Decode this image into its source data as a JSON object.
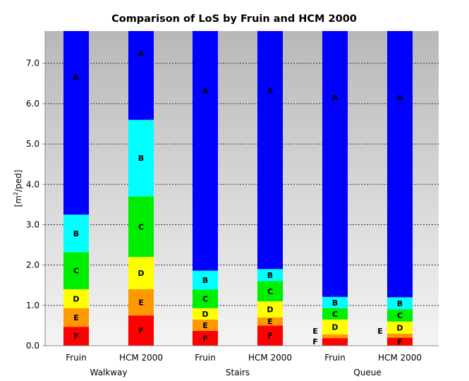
{
  "chart_data": {
    "type": "bar",
    "stacked": true,
    "title": "Comparison of LoS by Fruin and HCM 2000",
    "ylabel_prefix": "[m",
    "ylabel_sup": "2",
    "ylabel_suffix": "/ped]",
    "ylim": [
      0,
      7.8
    ],
    "yticks": [
      "0.0",
      "1.0",
      "2.0",
      "3.0",
      "4.0",
      "5.0",
      "6.0",
      "7.0"
    ],
    "grid": true,
    "legend": "none",
    "groups": [
      "Walkway",
      "Stairs",
      "Queue"
    ],
    "bars": [
      {
        "label": "Fruin",
        "group": "Walkway",
        "segments": [
          {
            "los": "F",
            "from": 0,
            "to": 0.47
          },
          {
            "los": "E",
            "from": 0.47,
            "to": 0.93
          },
          {
            "los": "D",
            "from": 0.93,
            "to": 1.4
          },
          {
            "los": "C",
            "from": 1.4,
            "to": 2.32
          },
          {
            "los": "B",
            "from": 2.32,
            "to": 3.25
          },
          {
            "los": "A",
            "from": 3.25,
            "to": 7.8
          }
        ]
      },
      {
        "label": "HCM 2000",
        "group": "Walkway",
        "segments": [
          {
            "los": "F",
            "from": 0,
            "to": 0.75
          },
          {
            "los": "E",
            "from": 0.75,
            "to": 1.4
          },
          {
            "los": "D",
            "from": 1.4,
            "to": 2.2
          },
          {
            "los": "C",
            "from": 2.2,
            "to": 3.7
          },
          {
            "los": "B",
            "from": 3.7,
            "to": 5.6
          },
          {
            "los": "A",
            "from": 5.6,
            "to": 7.8
          }
        ]
      },
      {
        "label": "Fruin",
        "group": "Stairs",
        "segments": [
          {
            "los": "F",
            "from": 0,
            "to": 0.37
          },
          {
            "los": "E",
            "from": 0.37,
            "to": 0.65
          },
          {
            "los": "D",
            "from": 0.65,
            "to": 0.93
          },
          {
            "los": "C",
            "from": 0.93,
            "to": 1.39
          },
          {
            "los": "B",
            "from": 1.39,
            "to": 1.86
          },
          {
            "los": "A",
            "from": 1.86,
            "to": 7.8
          }
        ]
      },
      {
        "label": "HCM 2000",
        "group": "Stairs",
        "segments": [
          {
            "los": "F",
            "from": 0,
            "to": 0.5
          },
          {
            "los": "E",
            "from": 0.5,
            "to": 0.7
          },
          {
            "los": "D",
            "from": 0.7,
            "to": 1.1
          },
          {
            "los": "C",
            "from": 1.1,
            "to": 1.6
          },
          {
            "los": "B",
            "from": 1.6,
            "to": 1.9
          },
          {
            "los": "A",
            "from": 1.9,
            "to": 7.8
          }
        ]
      },
      {
        "label": "Fruin",
        "group": "Queue",
        "segments": [
          {
            "los": "F",
            "from": 0,
            "to": 0.19
          },
          {
            "los": "E",
            "from": 0.19,
            "to": 0.28
          },
          {
            "los": "D",
            "from": 0.28,
            "to": 0.65
          },
          {
            "los": "C",
            "from": 0.65,
            "to": 0.93
          },
          {
            "los": "B",
            "from": 0.93,
            "to": 1.21
          },
          {
            "los": "A",
            "from": 1.21,
            "to": 7.8
          }
        ]
      },
      {
        "label": "HCM 2000",
        "group": "Queue",
        "segments": [
          {
            "los": "F",
            "from": 0,
            "to": 0.2
          },
          {
            "los": "E",
            "from": 0.2,
            "to": 0.3
          },
          {
            "los": "D",
            "from": 0.3,
            "to": 0.6
          },
          {
            "los": "C",
            "from": 0.6,
            "to": 0.9
          },
          {
            "los": "B",
            "from": 0.9,
            "to": 1.2
          },
          {
            "los": "A",
            "from": 1.2,
            "to": 7.8
          }
        ]
      }
    ],
    "los_colors": {
      "A": "#0000ff",
      "B": "#00ffff",
      "C": "#00ee00",
      "D": "#ffff00",
      "E": "#ff9900",
      "F": "#ff0000"
    },
    "plot_background": {
      "top": "#b8b8b8",
      "bottom": "#f4f4f4"
    }
  }
}
